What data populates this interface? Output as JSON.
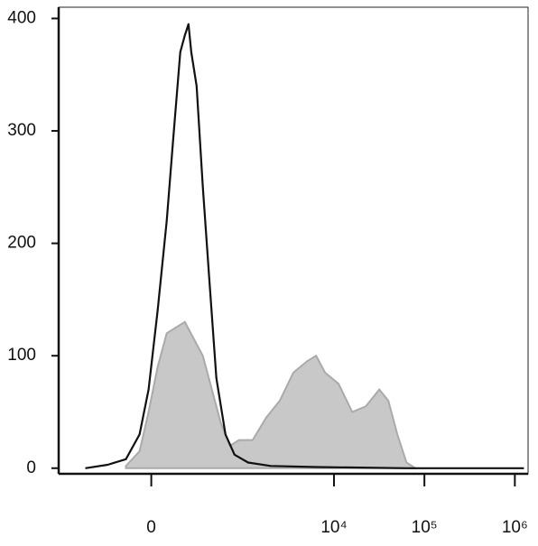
{
  "chart_data": {
    "type": "histogram-overlay",
    "xscale": "biexponential",
    "xlim": [
      -1000,
      1400000
    ],
    "ylim": [
      -5,
      410
    ],
    "yticks": [
      0,
      100,
      200,
      300,
      400
    ],
    "xticks": [
      0,
      {
        "value": 10000,
        "label": "10⁴"
      },
      {
        "value": 100000,
        "label": "10⁵"
      },
      {
        "value": 1000000,
        "label": "10⁶"
      }
    ],
    "series": [
      {
        "color": "#c8c8c8",
        "fill": true,
        "x": [
          -132,
          -58,
          -13,
          31,
          77,
          127,
          184,
          250,
          329,
          426,
          546,
          697,
          882,
          1255,
          1777,
          2513,
          3558,
          5020,
          6340,
          7970,
          11250,
          15900,
          22460,
          31700,
          39900,
          50200,
          63400,
          79800
        ],
        "values": [
          2,
          15,
          50,
          90,
          120,
          125,
          130,
          115,
          100,
          70,
          40,
          20,
          25,
          25,
          45,
          60,
          85,
          95,
          100,
          85,
          75,
          50,
          55,
          70,
          60,
          30,
          5,
          0
        ]
      },
      {
        "color": "#111111",
        "fill": false,
        "x": [
          -495,
          -258,
          -132,
          -58,
          -13,
          31,
          77,
          111,
          154,
          184,
          209,
          230,
          273,
          329,
          395,
          483,
          617,
          783,
          1115,
          1994,
          6340,
          63400,
          1260000
        ],
        "values": [
          0,
          3,
          8,
          30,
          70,
          140,
          220,
          290,
          370,
          385,
          395,
          370,
          340,
          250,
          170,
          80,
          30,
          12,
          5,
          2,
          1,
          0,
          0
        ]
      }
    ]
  }
}
